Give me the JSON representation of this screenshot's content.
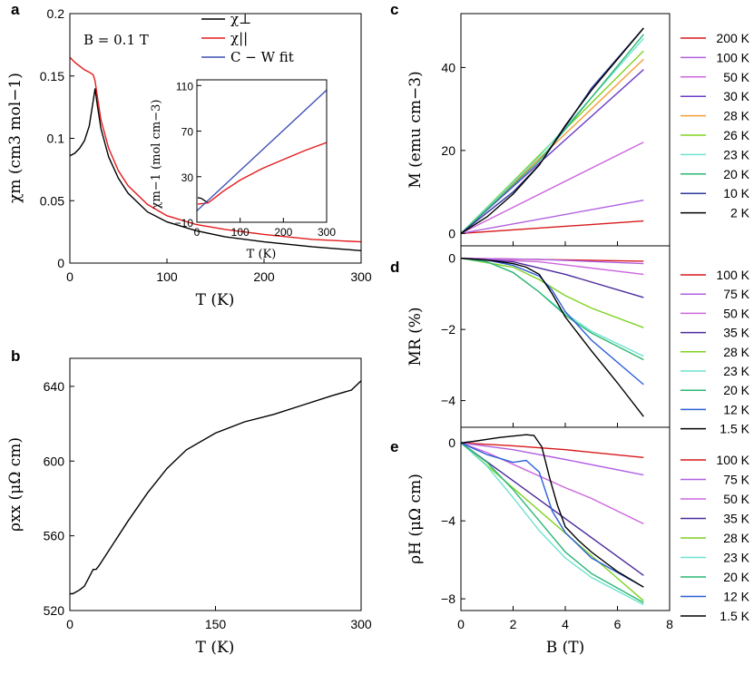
{
  "chart_data": [
    {
      "id": "a",
      "panel_label": "a",
      "type": "line",
      "xlabel": "T (K)",
      "ylabel": "χm (cm3 mol−1)",
      "xlim": [
        0,
        300
      ],
      "ylim": [
        0,
        0.2
      ],
      "xticks": [
        "0",
        "100",
        "200",
        "300"
      ],
      "yticks": [
        "0",
        "0.05",
        "0.1",
        "0.15",
        "0.2"
      ],
      "annotation": "B = 0.1 T",
      "series": [
        {
          "name": "χ⊥",
          "color": "#000000",
          "x": [
            0,
            5,
            10,
            15,
            20,
            24,
            26,
            28,
            32,
            40,
            50,
            60,
            80,
            100,
            130,
            160,
            200,
            250,
            300
          ],
          "y": [
            0.086,
            0.088,
            0.092,
            0.098,
            0.11,
            0.13,
            0.14,
            0.128,
            0.108,
            0.085,
            0.068,
            0.056,
            0.041,
            0.033,
            0.026,
            0.021,
            0.017,
            0.013,
            0.01
          ]
        },
        {
          "name": "χ||",
          "color": "#e31a1c",
          "x": [
            0,
            5,
            10,
            15,
            20,
            24,
            26,
            28,
            32,
            40,
            50,
            60,
            80,
            100,
            130,
            160,
            200,
            250,
            300
          ],
          "y": [
            0.165,
            0.161,
            0.158,
            0.155,
            0.153,
            0.151,
            0.146,
            0.135,
            0.115,
            0.092,
            0.074,
            0.062,
            0.047,
            0.038,
            0.031,
            0.027,
            0.023,
            0.019,
            0.017
          ]
        }
      ],
      "inset": {
        "type": "line",
        "xlabel": "T (K)",
        "ylabel": "χm−1 (mol cm−3)",
        "xlim": [
          0,
          300
        ],
        "ylim": [
          -10,
          115
        ],
        "xticks": [
          "0",
          "100",
          "200",
          "300"
        ],
        "yticks": [
          "−10",
          "30",
          "70",
          "110"
        ],
        "series": [
          {
            "name": "χ⊥ inverse",
            "color": "#000000",
            "x": [
              2,
              10,
              20,
              26
            ],
            "y": [
              11.6,
              11,
              8.5,
              7
            ]
          },
          {
            "name": "χ|| inverse",
            "color": "#e31a1c",
            "x": [
              2,
              15,
              26,
              40,
              60,
              100,
              150,
              200,
              250,
              300
            ],
            "y": [
              6,
              6.5,
              7,
              11,
              17,
              27,
              37,
              45,
              53,
              60
            ]
          },
          {
            "name": "C − W fit",
            "color": "#3f51b5",
            "x": [
              0,
              300
            ],
            "y": [
              0,
              106
            ]
          }
        ]
      },
      "legend": [
        {
          "label": "χ⊥",
          "color": "#000000"
        },
        {
          "label": "χ||",
          "color": "#e31a1c"
        },
        {
          "label": "C − W fit",
          "color": "#3f51b5"
        }
      ]
    },
    {
      "id": "b",
      "panel_label": "b",
      "type": "line",
      "xlabel": "T (K)",
      "ylabel": "ρxx (μΩ cm)",
      "xlim": [
        0,
        300
      ],
      "ylim": [
        520,
        655
      ],
      "xticks": [
        "0",
        "150",
        "300"
      ],
      "yticks": [
        "520",
        "560",
        "600",
        "640"
      ],
      "series": [
        {
          "name": "rho_xx",
          "color": "#000000",
          "x": [
            0,
            3,
            10,
            15,
            20,
            24,
            27,
            30,
            40,
            60,
            80,
            100,
            120,
            150,
            180,
            210,
            240,
            270,
            290,
            300
          ],
          "y": [
            529,
            529,
            531,
            533,
            538,
            542,
            542,
            544,
            552,
            568,
            583,
            596,
            606,
            615,
            621,
            625,
            630,
            635,
            638,
            643
          ]
        }
      ]
    },
    {
      "id": "c",
      "panel_label": "c",
      "type": "line",
      "xlabel": "B (T)",
      "ylabel": "M (emu cm−3)",
      "xlim": [
        0,
        8
      ],
      "ylim": [
        -3,
        53
      ],
      "yticks": [
        "0",
        "20",
        "40"
      ],
      "series": [
        {
          "name": "200 K",
          "color": "#d7191c",
          "x": [
            0,
            7
          ],
          "y": [
            0,
            3
          ]
        },
        {
          "name": "100 K",
          "color": "#b060e0",
          "x": [
            0,
            7
          ],
          "y": [
            0,
            8
          ]
        },
        {
          "name": "50 K",
          "color": "#cc66dd",
          "x": [
            0,
            7
          ],
          "y": [
            0,
            22
          ]
        },
        {
          "name": "30 K",
          "color": "#6a3dc9",
          "x": [
            0,
            7
          ],
          "y": [
            0,
            39.5
          ]
        },
        {
          "name": "28 K",
          "color": "#f39c34",
          "x": [
            0,
            7
          ],
          "y": [
            0,
            42
          ]
        },
        {
          "name": "26 K",
          "color": "#7ed321",
          "x": [
            0,
            7
          ],
          "y": [
            0,
            44
          ]
        },
        {
          "name": "23 K",
          "color": "#6fe3cf",
          "x": [
            0,
            3,
            7
          ],
          "y": [
            0,
            18.5,
            47
          ]
        },
        {
          "name": "20 K",
          "color": "#2bb673",
          "x": [
            0,
            3,
            7
          ],
          "y": [
            0,
            17.5,
            48
          ]
        },
        {
          "name": "10 K",
          "color": "#2d3a9c",
          "x": [
            0,
            2,
            3,
            5,
            7
          ],
          "y": [
            0,
            10,
            16.5,
            35,
            49.5
          ]
        },
        {
          "name": "2 K",
          "color": "#000000",
          "x": [
            0,
            1,
            2,
            3,
            4,
            5,
            6,
            7
          ],
          "y": [
            0,
            4,
            9.5,
            16.5,
            26,
            34.5,
            42,
            49.5
          ]
        }
      ]
    },
    {
      "id": "d",
      "panel_label": "d",
      "type": "line",
      "xlabel": "B (T)",
      "ylabel": "MR (%)",
      "xlim": [
        0,
        8
      ],
      "ylim": [
        -4.75,
        0.35
      ],
      "yticks": [
        "0",
        "−2",
        "−4"
      ],
      "series": [
        {
          "name": "100 K",
          "color": "#d7191c",
          "x": [
            0,
            7
          ],
          "y": [
            0,
            -0.08
          ]
        },
        {
          "name": "75 K",
          "color": "#b060e0",
          "x": [
            0,
            3,
            7
          ],
          "y": [
            0,
            -0.03,
            -0.15
          ]
        },
        {
          "name": "50 K",
          "color": "#cc66dd",
          "x": [
            0,
            3,
            7
          ],
          "y": [
            0,
            -0.1,
            -0.45
          ]
        },
        {
          "name": "35 K",
          "color": "#4b2a9c",
          "x": [
            0,
            2,
            4,
            7
          ],
          "y": [
            0,
            -0.1,
            -0.45,
            -1.1
          ]
        },
        {
          "name": "28 K",
          "color": "#7ed321",
          "x": [
            0,
            2,
            3,
            4,
            5,
            7
          ],
          "y": [
            0,
            -0.25,
            -0.6,
            -1.05,
            -1.4,
            -1.95
          ]
        },
        {
          "name": "23 K",
          "color": "#6fe3cf",
          "x": [
            0,
            1,
            2,
            3,
            4,
            5,
            7
          ],
          "y": [
            0,
            -0.1,
            -0.4,
            -0.95,
            -1.55,
            -2.05,
            -2.75
          ]
        },
        {
          "name": "20 K",
          "color": "#2bb673",
          "x": [
            0,
            1,
            2,
            3,
            4,
            5,
            7
          ],
          "y": [
            0,
            -0.1,
            -0.4,
            -0.95,
            -1.6,
            -2.1,
            -2.85
          ]
        },
        {
          "name": "12 K",
          "color": "#2d5fd6",
          "x": [
            0,
            1,
            2,
            3,
            3.5,
            4,
            5,
            7
          ],
          "y": [
            0,
            -0.05,
            -0.2,
            -0.5,
            -0.9,
            -1.5,
            -2.3,
            -3.55
          ]
        },
        {
          "name": "1.5 K",
          "color": "#000000",
          "x": [
            0,
            1,
            2,
            2.5,
            3,
            3.5,
            4,
            5,
            6,
            7
          ],
          "y": [
            0,
            -0.05,
            -0.15,
            -0.25,
            -0.45,
            -1.0,
            -1.65,
            -2.6,
            -3.5,
            -4.45
          ]
        }
      ]
    },
    {
      "id": "e",
      "panel_label": "e",
      "type": "line",
      "xlabel": "B (T)",
      "ylabel": "ρH (μΩ cm)",
      "xlim": [
        0,
        8
      ],
      "ylim": [
        -8.6,
        0.8
      ],
      "xticks": [
        "0",
        "2",
        "4",
        "6",
        "8"
      ],
      "yticks": [
        "0",
        "−4",
        "−8"
      ],
      "series": [
        {
          "name": "100 K",
          "color": "#d7191c",
          "x": [
            0,
            2,
            4,
            7
          ],
          "y": [
            0,
            -0.15,
            -0.35,
            -0.75
          ]
        },
        {
          "name": "75 K",
          "color": "#b060e0",
          "x": [
            0,
            2,
            4,
            7
          ],
          "y": [
            0,
            -0.35,
            -0.85,
            -1.65
          ]
        },
        {
          "name": "50 K",
          "color": "#cc66dd",
          "x": [
            0,
            1,
            2,
            4,
            5,
            7
          ],
          "y": [
            0,
            -0.5,
            -1.1,
            -2.3,
            -2.85,
            -4.15
          ]
        },
        {
          "name": "35 K",
          "color": "#4b2a9c",
          "x": [
            0,
            7
          ],
          "y": [
            0,
            -6.8
          ]
        },
        {
          "name": "28 K",
          "color": "#7ed321",
          "x": [
            0,
            7
          ],
          "y": [
            0,
            -8.1
          ]
        },
        {
          "name": "23 K",
          "color": "#6fe3cf",
          "x": [
            0,
            1,
            2,
            3,
            4,
            5,
            7
          ],
          "y": [
            0,
            -1.2,
            -2.8,
            -4.5,
            -5.9,
            -6.9,
            -8.3
          ]
        },
        {
          "name": "20 K",
          "color": "#2bb673",
          "x": [
            0,
            1,
            2,
            3,
            4,
            5,
            7
          ],
          "y": [
            0,
            -1.0,
            -2.4,
            -4.0,
            -5.6,
            -6.7,
            -8.2
          ]
        },
        {
          "name": "12 K",
          "color": "#2d5fd6",
          "x": [
            0,
            1,
            2,
            2.5,
            3,
            3.5,
            4,
            5,
            7
          ],
          "y": [
            0,
            -0.6,
            -1.0,
            -0.9,
            -1.5,
            -3.5,
            -4.6,
            -5.9,
            -7.4
          ]
        },
        {
          "name": "1.5 K",
          "color": "#000000",
          "x": [
            0,
            0.5,
            1,
            1.5,
            2,
            2.5,
            2.8,
            3.1,
            3.4,
            3.7,
            4,
            4.5,
            5,
            6,
            7
          ],
          "y": [
            0,
            0.08,
            0.18,
            0.28,
            0.35,
            0.42,
            0.38,
            -0.2,
            -1.8,
            -3.2,
            -4.3,
            -5.0,
            -5.6,
            -6.6,
            -7.4
          ]
        }
      ]
    }
  ]
}
